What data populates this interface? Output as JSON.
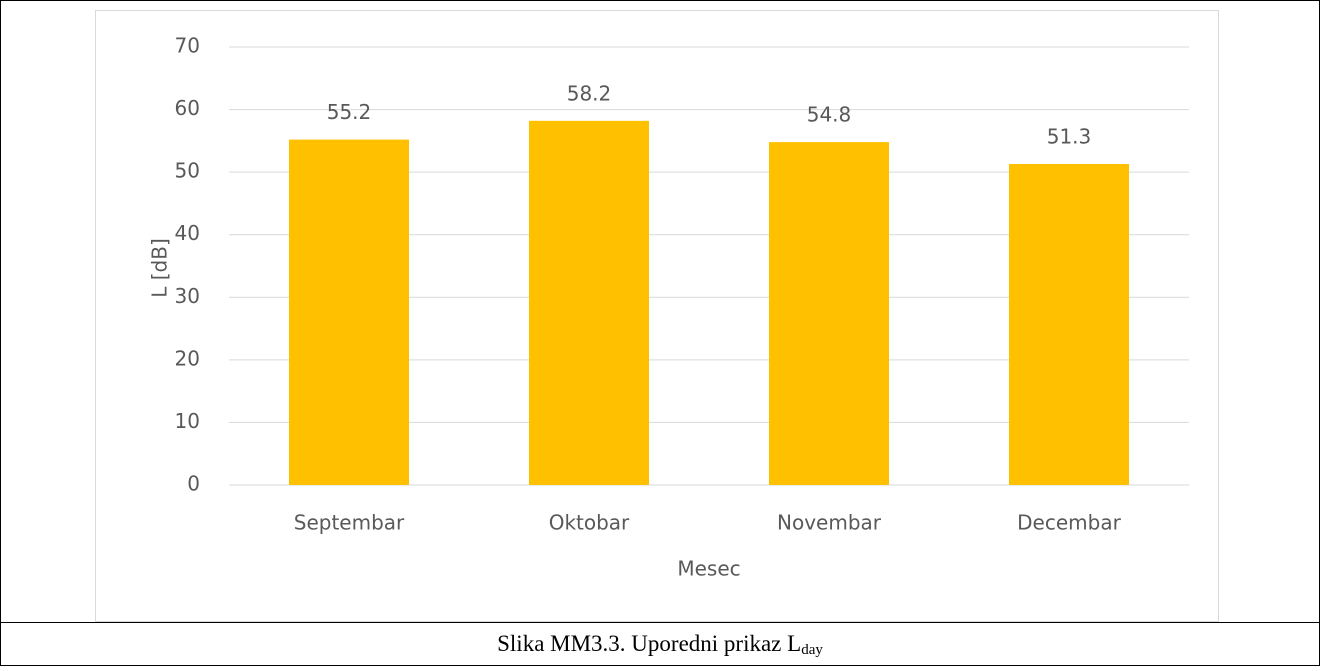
{
  "chart_data": {
    "type": "bar",
    "categories": [
      "Septembar",
      "Oktobar",
      "Novembar",
      "Decembar"
    ],
    "values": [
      55.2,
      58.2,
      54.8,
      51.3
    ],
    "color": "#FFC000",
    "ylabel": "L [dB]",
    "xlabel": "Mesec",
    "ylim": [
      0,
      70
    ],
    "yticks": [
      0,
      10,
      20,
      30,
      40,
      50,
      60,
      70
    ],
    "grid": true,
    "data_labels": true
  },
  "caption": {
    "text": "Slika MM3.3. Uporedni prikaz L",
    "subscript": "day"
  }
}
